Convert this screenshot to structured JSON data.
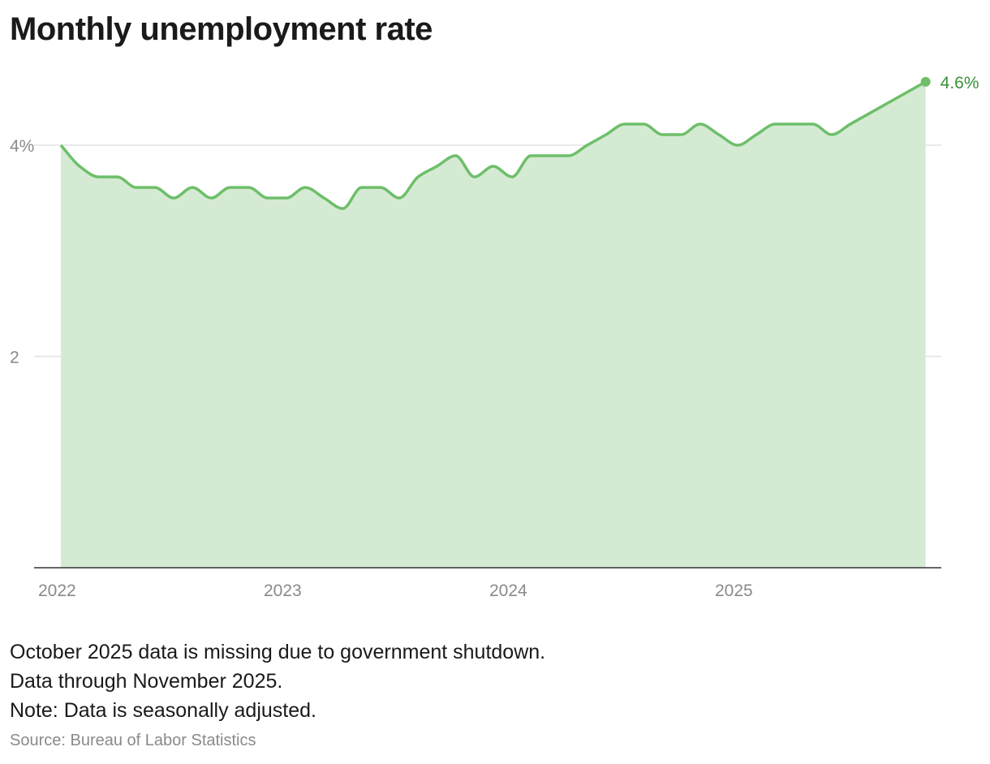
{
  "chart_data": {
    "type": "area",
    "title": "Monthly unemployment rate",
    "xlabel": "",
    "ylabel": "",
    "ylim": [
      0,
      4.6
    ],
    "y_ticks": [
      {
        "value": 2,
        "label": "2"
      },
      {
        "value": 4,
        "label": "4%"
      }
    ],
    "x_ticks": [
      {
        "value": "2022-01",
        "label": "2022"
      },
      {
        "value": "2023-01",
        "label": "2023"
      },
      {
        "value": "2024-01",
        "label": "2024"
      },
      {
        "value": "2025-01",
        "label": "2025"
      }
    ],
    "grid": "horizontal",
    "end_label": "4.6%",
    "x": [
      "2022-01",
      "2022-02",
      "2022-03",
      "2022-04",
      "2022-05",
      "2022-06",
      "2022-07",
      "2022-08",
      "2022-09",
      "2022-10",
      "2022-11",
      "2022-12",
      "2023-01",
      "2023-02",
      "2023-03",
      "2023-04",
      "2023-05",
      "2023-06",
      "2023-07",
      "2023-08",
      "2023-09",
      "2023-10",
      "2023-11",
      "2023-12",
      "2024-01",
      "2024-02",
      "2024-03",
      "2024-04",
      "2024-05",
      "2024-06",
      "2024-07",
      "2024-08",
      "2024-09",
      "2024-10",
      "2024-11",
      "2024-12",
      "2025-01",
      "2025-02",
      "2025-03",
      "2025-04",
      "2025-05",
      "2025-06",
      "2025-07",
      "2025-08",
      "2025-09",
      "2025-10",
      "2025-11"
    ],
    "values": [
      4.0,
      3.8,
      3.7,
      3.7,
      3.6,
      3.6,
      3.5,
      3.6,
      3.5,
      3.6,
      3.6,
      3.5,
      3.5,
      3.6,
      3.5,
      3.4,
      3.6,
      3.6,
      3.5,
      3.7,
      3.8,
      3.9,
      3.7,
      3.8,
      3.7,
      3.9,
      3.9,
      3.9,
      4.0,
      4.1,
      4.2,
      4.2,
      4.1,
      4.1,
      4.2,
      4.1,
      4.0,
      4.1,
      4.2,
      4.2,
      4.2,
      4.1,
      4.2,
      4.3,
      4.4,
      null,
      4.6
    ],
    "colors": {
      "line": "#6dbf6a",
      "fill": "#d5ead3",
      "label": "#3d8f3a",
      "grid": "#e3e3e3",
      "axis": "#333333"
    }
  },
  "notes": [
    "October 2025 data is missing due to government shutdown.",
    "Data through November 2025.",
    "Note: Data is seasonally adjusted."
  ],
  "source": "Source: Bureau of Labor Statistics"
}
